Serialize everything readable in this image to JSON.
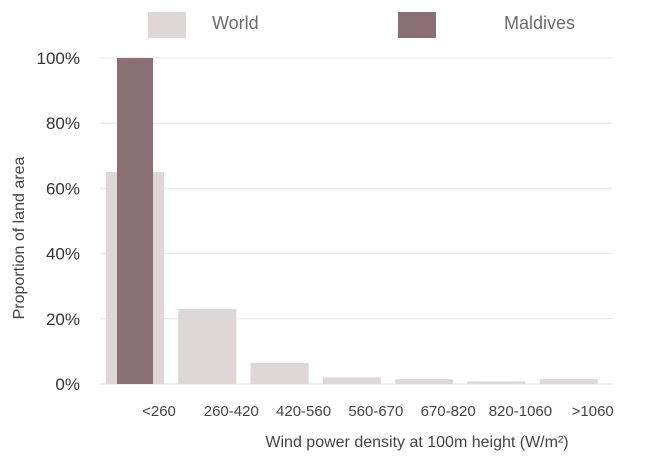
{
  "chart_data": {
    "type": "bar",
    "categories": [
      "<260",
      "260-420",
      "420-560",
      "560-670",
      "670-820",
      "820-1060",
      ">1060"
    ],
    "series": [
      {
        "name": "World",
        "values": [
          65,
          23,
          6.5,
          2,
          1.5,
          0.8,
          1.5
        ],
        "color": "#ddd7d8"
      },
      {
        "name": "Maldives",
        "values": [
          100,
          0,
          0,
          0,
          0,
          0,
          0
        ],
        "color": "#8a7074"
      }
    ],
    "ylabel": "Proportion of land area",
    "xlabel": "Wind power density at 100m height (W/m²)",
    "ylim": [
      0,
      100
    ],
    "yticks": [
      0,
      20,
      40,
      60,
      80,
      100
    ],
    "ytick_labels": [
      "0%",
      "20%",
      "40%",
      "60%",
      "80%",
      "100%"
    ],
    "grid": true,
    "legend_position": "top"
  }
}
